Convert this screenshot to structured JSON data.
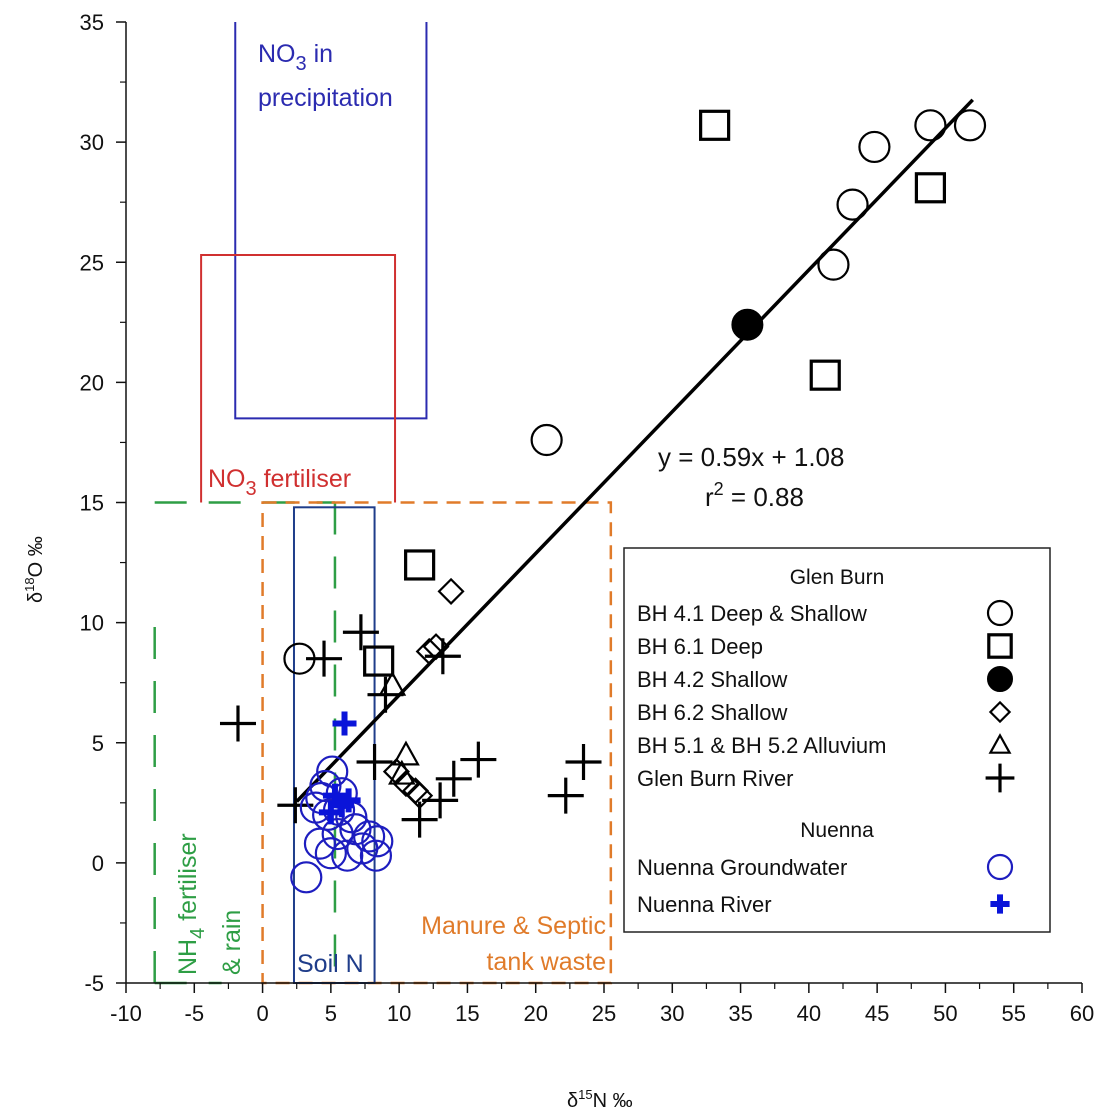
{
  "chart_data": {
    "type": "scatter",
    "xlabel_prefix": "δ",
    "xlabel_sup": "15",
    "xlabel_main": "N ‰",
    "ylabel_prefix": "δ",
    "ylabel_sup": "18",
    "ylabel_main": "O ‰",
    "xlim": [
      -10,
      60
    ],
    "ylim": [
      -5,
      35
    ],
    "x_ticks": [
      -10,
      -5,
      0,
      5,
      10,
      15,
      20,
      25,
      30,
      35,
      40,
      45,
      50,
      55,
      60
    ],
    "y_ticks": [
      -5,
      0,
      5,
      10,
      15,
      20,
      25,
      30,
      35
    ],
    "grid": false,
    "legend_position": "right",
    "regression": {
      "slope": 0.59,
      "intercept": 1.08,
      "x_range": [
        2.5,
        52
      ],
      "equation_label": "y = 0.59x + 1.08",
      "r2_label_main": "r",
      "r2_label_sup": "2",
      "r2_label_rest": " = 0.88"
    },
    "zones": [
      {
        "key": "precip",
        "label_line1_a": "NO",
        "label_line1_sub": "3",
        "label_line1_b": " in",
        "label_line2": "precipitation",
        "x": [
          -2,
          12
        ],
        "y": [
          18.5,
          35
        ],
        "color": "#2b2bb0",
        "style": "solid"
      },
      {
        "key": "no3fert",
        "label_a": "NO",
        "label_sub": "3",
        "label_b": " fertiliser",
        "x": [
          -4.5,
          9.7
        ],
        "y": [
          15,
          25.3
        ],
        "color": "#d03030",
        "style": "solid"
      },
      {
        "key": "nh4",
        "label_a": "NH",
        "label_sub": "4",
        "label_b": " fertiliser",
        "label_line2": "& rain",
        "x": [
          -7.9,
          5.3
        ],
        "y": [
          -5,
          15
        ],
        "color": "#2e9e45",
        "style": "dashed"
      },
      {
        "key": "manure",
        "label_line1": "Manure & Septic",
        "label_line2": "tank waste",
        "x": [
          0,
          25.5
        ],
        "y": [
          -5,
          15
        ],
        "color": "#e07b2a",
        "style": "dashed"
      },
      {
        "key": "soil",
        "label": "Soil N",
        "x": [
          2.3,
          8.2
        ],
        "y": [
          -5,
          14.8
        ],
        "color": "#1f3d8a",
        "style": "solid"
      }
    ],
    "series": [
      {
        "name": "BH 4.1 Deep & Shallow",
        "marker": "circle",
        "color": "#000000",
        "points": [
          [
            2.7,
            8.5
          ],
          [
            20.8,
            17.6
          ],
          [
            41.8,
            24.9
          ],
          [
            43.2,
            27.4
          ],
          [
            44.8,
            29.8
          ],
          [
            48.9,
            30.7
          ],
          [
            51.8,
            30.7
          ]
        ]
      },
      {
        "name": "BH 6.1 Deep",
        "marker": "square",
        "color": "#000000",
        "points": [
          [
            11.5,
            12.4
          ],
          [
            8.5,
            8.4
          ],
          [
            33.1,
            30.7
          ],
          [
            48.9,
            28.1
          ],
          [
            41.2,
            20.3
          ]
        ]
      },
      {
        "name": "BH 4.2 Shallow",
        "marker": "filled-circle",
        "color": "#000000",
        "points": [
          [
            35.5,
            22.4
          ]
        ]
      },
      {
        "name": "BH 6.2 Shallow",
        "marker": "diamond",
        "color": "#000000",
        "points": [
          [
            13.8,
            11.3
          ],
          [
            12.2,
            8.8
          ],
          [
            12.7,
            9.0
          ],
          [
            9.8,
            3.8
          ],
          [
            10.5,
            3.3
          ],
          [
            11.2,
            3.0
          ],
          [
            11.5,
            2.8
          ]
        ]
      },
      {
        "name": "BH 5.1 & BH 5.2 Alluvium",
        "marker": "triangle",
        "color": "#000000",
        "points": [
          [
            9.5,
            7.4
          ],
          [
            10.5,
            4.5
          ],
          [
            10.2,
            3.7
          ]
        ]
      },
      {
        "name": "Glen Burn River",
        "marker": "plus",
        "color": "#000000",
        "points": [
          [
            -1.8,
            5.8
          ],
          [
            2.4,
            2.4
          ],
          [
            4.5,
            8.5
          ],
          [
            7.2,
            9.6
          ],
          [
            9.0,
            7.0
          ],
          [
            8.2,
            4.2
          ],
          [
            13.2,
            8.6
          ],
          [
            11.5,
            1.8
          ],
          [
            13.0,
            2.6
          ],
          [
            14.0,
            3.5
          ],
          [
            15.8,
            4.3
          ],
          [
            22.2,
            2.8
          ],
          [
            23.5,
            4.2
          ]
        ]
      },
      {
        "name": "Nuenna Groundwater",
        "marker": "circle",
        "color": "#1d1dbf",
        "points": [
          [
            3.2,
            -0.6
          ],
          [
            4.2,
            0.8
          ],
          [
            4.8,
            2.0
          ],
          [
            5.1,
            3.8
          ],
          [
            5.0,
            0.4
          ],
          [
            5.5,
            1.2
          ],
          [
            5.8,
            2.9
          ],
          [
            6.2,
            0.3
          ],
          [
            6.8,
            1.4
          ],
          [
            7.3,
            0.6
          ],
          [
            7.8,
            1.1
          ],
          [
            8.3,
            0.3
          ],
          [
            8.4,
            0.9
          ],
          [
            4.3,
            2.7
          ],
          [
            5.6,
            2.2
          ],
          [
            6.5,
            1.9
          ],
          [
            4.6,
            3.2
          ],
          [
            3.9,
            2.3
          ]
        ]
      },
      {
        "name": "Nuenna River",
        "marker": "plus-bold",
        "color": "#0a14d9",
        "points": [
          [
            6.0,
            5.8
          ],
          [
            5.3,
            2.8
          ],
          [
            5.8,
            2.4
          ],
          [
            6.3,
            2.6
          ],
          [
            5.0,
            2.1
          ]
        ]
      }
    ],
    "legend": {
      "group1_title": "Glen Burn",
      "group2_title": "Nuenna",
      "entries": [
        "BH 4.1 Deep & Shallow",
        "BH 6.1 Deep",
        "BH 4.2 Shallow",
        "BH 6.2 Shallow",
        "BH 5.1 & BH 5.2 Alluvium",
        "Glen Burn River"
      ],
      "entries2": [
        "Nuenna Groundwater",
        "Nuenna River"
      ]
    }
  }
}
